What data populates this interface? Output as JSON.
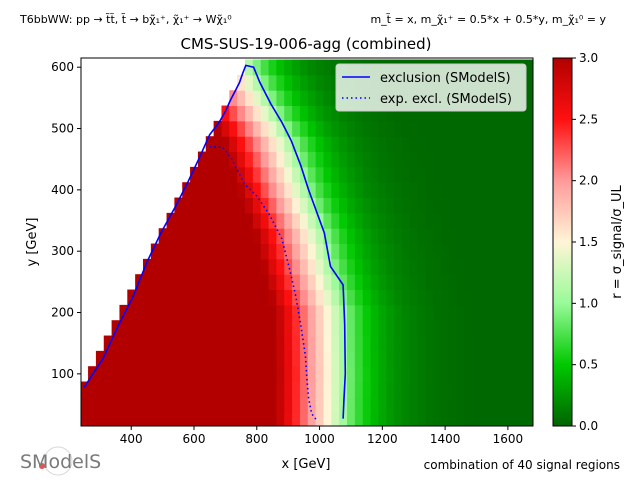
{
  "header": {
    "left_text": "T6bbWW: pp → t̃t̃, t̃ → bχ̃₁⁺, χ̃₁⁺ → Wχ̃₁⁰",
    "right_text": "m_t̃ = x, m_χ̃₁⁺ = 0.5*x + 0.5*y, m_χ̃₁⁰ = y"
  },
  "footer": {
    "logo_text": "SModelS",
    "note": "combination of 40 signal regions"
  },
  "chart_data": {
    "type": "heatmap",
    "title": "CMS-SUS-19-006-agg (combined)",
    "xlabel": "x [GeV]",
    "ylabel": "y [GeV]",
    "xlim": [
      240,
      1680
    ],
    "ylim": [
      15,
      615
    ],
    "x_ticks": [
      400,
      600,
      800,
      1000,
      1200,
      1400,
      1600
    ],
    "y_ticks": [
      100,
      200,
      300,
      400,
      500,
      600
    ],
    "colorbar": {
      "label": "r = σ_signal/σ_UL",
      "range": [
        0,
        3
      ],
      "ticks": [
        0.0,
        0.5,
        1.0,
        1.5,
        2.0,
        2.5,
        3.0
      ],
      "colors": [
        "#006400",
        "#00c800",
        "#98fb98",
        "#fff5d6",
        "#ff9a9a",
        "#ff1010",
        "#b20000"
      ]
    },
    "series": [
      {
        "name": "exclusion (SModelS)",
        "color": "#0000ff",
        "style": "solid",
        "points": [
          [
            250,
            78
          ],
          [
            310,
            125
          ],
          [
            360,
            180
          ],
          [
            405,
            225
          ],
          [
            450,
            282
          ],
          [
            495,
            330
          ],
          [
            540,
            372
          ],
          [
            580,
            412
          ],
          [
            615,
            450
          ],
          [
            650,
            490
          ],
          [
            680,
            510
          ],
          [
            700,
            528
          ],
          [
            715,
            545
          ],
          [
            730,
            560
          ],
          [
            745,
            575
          ],
          [
            755,
            590
          ],
          [
            765,
            603
          ],
          [
            790,
            600
          ],
          [
            810,
            575
          ],
          [
            845,
            540
          ],
          [
            880,
            510
          ],
          [
            910,
            480
          ],
          [
            940,
            440
          ],
          [
            965,
            400
          ],
          [
            1015,
            330
          ],
          [
            1035,
            275
          ],
          [
            1075,
            245
          ],
          [
            1080,
            180
          ],
          [
            1082,
            100
          ],
          [
            1078,
            60
          ],
          [
            1075,
            27
          ]
        ]
      },
      {
        "name": "exp. excl. (SModelS)",
        "color": "#0000ff",
        "style": "dotted",
        "points": [
          [
            650,
            470
          ],
          [
            690,
            470
          ],
          [
            720,
            450
          ],
          [
            760,
            410
          ],
          [
            800,
            390
          ],
          [
            840,
            360
          ],
          [
            880,
            320
          ],
          [
            905,
            270
          ],
          [
            925,
            225
          ],
          [
            940,
            180
          ],
          [
            955,
            130
          ],
          [
            960,
            90
          ],
          [
            965,
            60
          ],
          [
            975,
            35
          ],
          [
            990,
            25
          ]
        ]
      }
    ],
    "legend": {
      "position": "top-right"
    }
  }
}
